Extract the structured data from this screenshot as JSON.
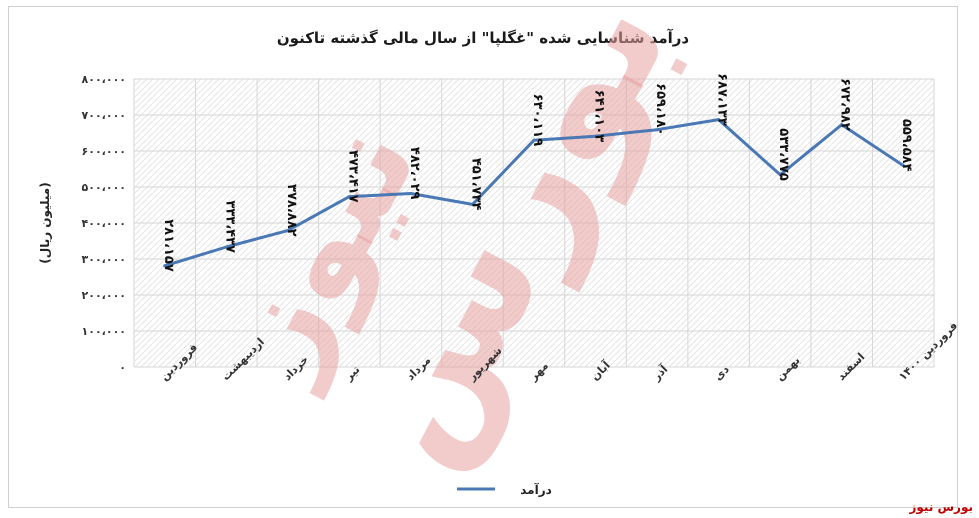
{
  "chart_data": {
    "type": "line",
    "title": "درآمد شناسایی شده \"غگلپا\" از سال مالی گذشته تاکنون",
    "ylabel": "(میلیون ریال)",
    "ylim": [
      0,
      800000
    ],
    "yticks": [
      0,
      100000,
      200000,
      300000,
      400000,
      500000,
      600000,
      700000,
      800000
    ],
    "ytick_labels": [
      "۰",
      "۱۰۰،۰۰۰",
      "۲۰۰،۰۰۰",
      "۳۰۰،۰۰۰",
      "۴۰۰،۰۰۰",
      "۵۰۰،۰۰۰",
      "۶۰۰،۰۰۰",
      "۷۰۰،۰۰۰",
      "۸۰۰،۰۰۰"
    ],
    "categories": [
      "فروردین",
      "اردیبهشت",
      "خرداد",
      "تیر",
      "مرداد",
      "شهریور",
      "مهر",
      "آبان",
      "آذر",
      "دی",
      "بهمن",
      "اسفند",
      "فروردین ۱۴۰۰"
    ],
    "grid": true,
    "legend_position": "bottom",
    "series": [
      {
        "name": "درآمد",
        "color": "#4a78b5",
        "values": [
          281157,
          333437,
          378882,
          473417,
          482029,
          451734,
          630119,
          641103,
          659180,
          687133,
          533775,
          672982,
          559584
        ],
        "labels": [
          "۲۸۱،۱۵۷",
          "۳۳۳،۴۳۷",
          "۳۷۸،۸۸۲",
          "۴۷۳،۴۱۷",
          "۴۸۲،۰۲۹",
          "۴۵۱،۷۳۴",
          "۶۳۰،۱۱۹",
          "۶۴۱،۱۰۳",
          "۶۵۹،۱۸۰",
          "۶۸۷،۱۳۳",
          "۵۳۳،۷۷۵",
          "۶۷۲،۹۸۲",
          "۵۵۹،۵۸۴"
        ]
      }
    ]
  },
  "watermark": {
    "line1": "بورس",
    "line2": "نیوز",
    "color": "#e8a0a0"
  },
  "brand": "بورس نیوز"
}
